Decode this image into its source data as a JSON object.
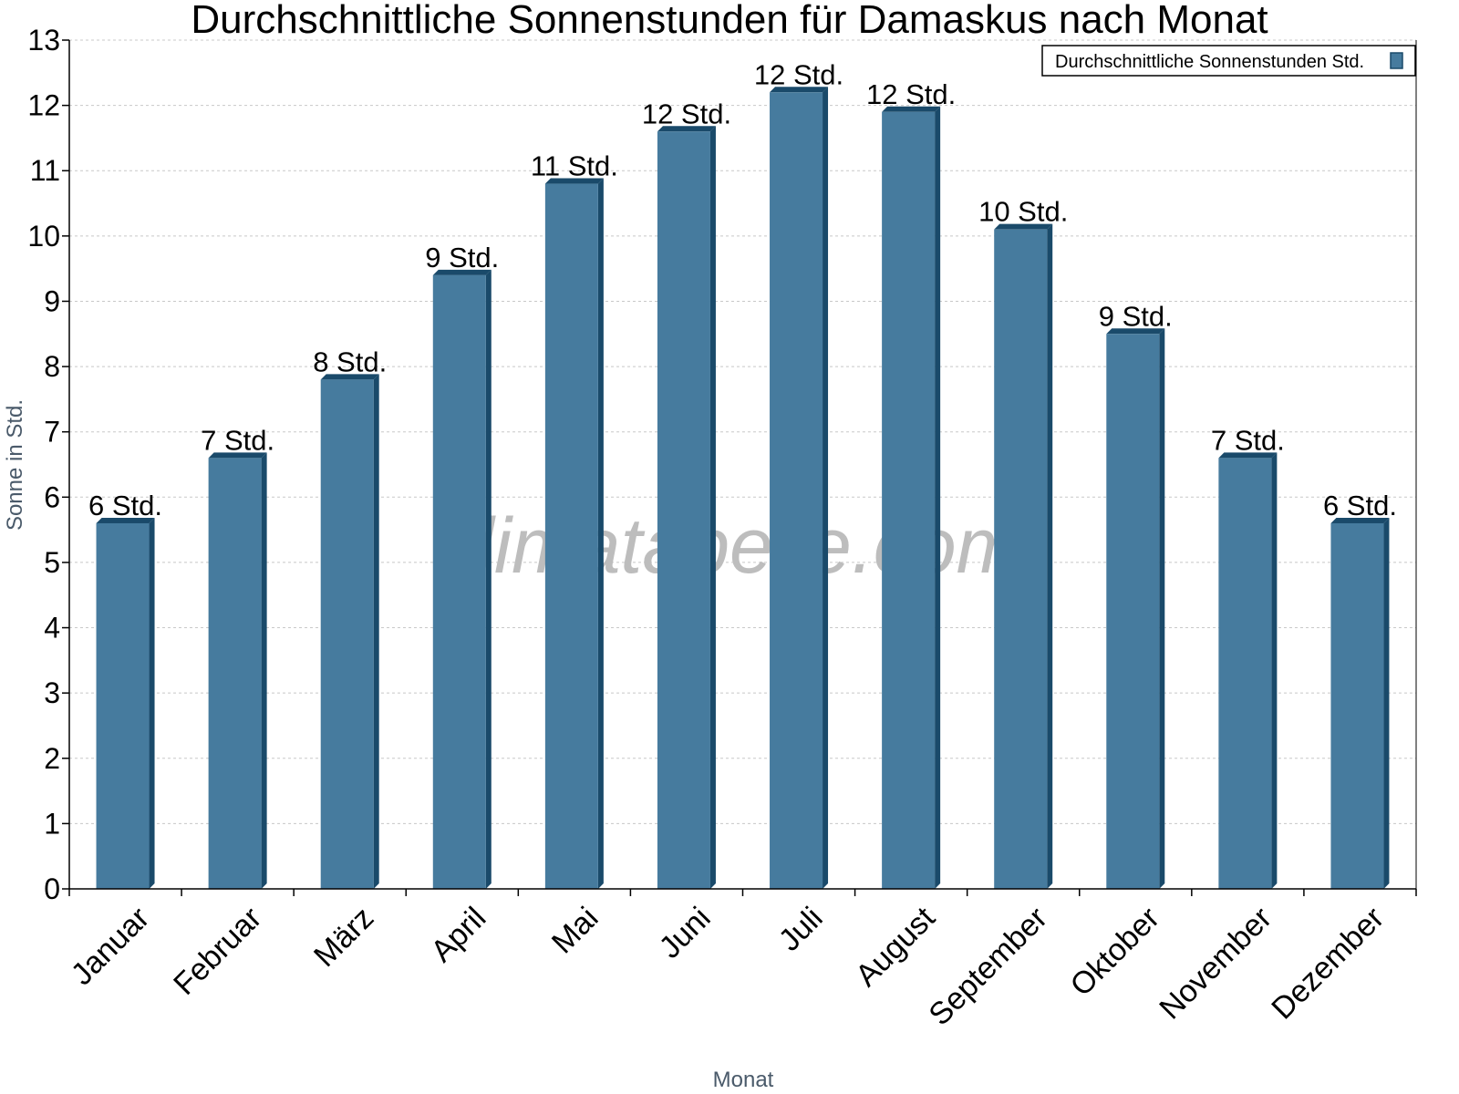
{
  "chart_data": {
    "type": "bar",
    "title": "Durchschnittliche Sonnenstunden für Damaskus nach Monat",
    "xlabel": "Monat",
    "ylabel": "Sonne in Std.",
    "ylim": [
      0,
      13
    ],
    "yticks": [
      0,
      1,
      2,
      3,
      4,
      5,
      6,
      7,
      8,
      9,
      10,
      11,
      12,
      13
    ],
    "grid": true,
    "legend_position": "top-right",
    "categories": [
      "Januar",
      "Februar",
      "März",
      "April",
      "Mai",
      "Juni",
      "Juli",
      "August",
      "September",
      "Oktober",
      "November",
      "Dezember"
    ],
    "series": [
      {
        "name": "Durchschnittliche Sonnenstunden Std.",
        "values": [
          5.6,
          6.6,
          7.8,
          9.4,
          10.8,
          11.6,
          12.2,
          11.9,
          10.1,
          8.5,
          6.6,
          5.6
        ],
        "labels": [
          "6 Std.",
          "7 Std.",
          "8 Std.",
          "9 Std.",
          "11 Std.",
          "12 Std.",
          "12 Std.",
          "12 Std.",
          "10 Std.",
          "9 Std.",
          "7 Std.",
          "6 Std."
        ],
        "color": "#467b9e",
        "side_color": "#1a4a6a"
      }
    ],
    "watermark": "klimatabelle.com"
  }
}
